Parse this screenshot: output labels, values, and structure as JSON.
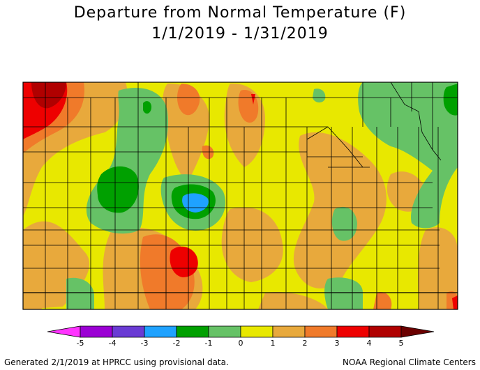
{
  "title": "Departure from Normal Temperature (F)",
  "date_range": "1/1/2019 - 1/31/2019",
  "legend": {
    "ticks": [
      "-5",
      "-4",
      "-3",
      "-2",
      "-1",
      "0",
      "1",
      "2",
      "3",
      "4",
      "5"
    ],
    "colors": [
      "#ff33ff",
      "#9b00d4",
      "#6a3bd4",
      "#1fa2ff",
      "#00a000",
      "#66c266",
      "#e8e800",
      "#e8a93c",
      "#f07a2a",
      "#ee0000",
      "#b00000",
      "#6b0000"
    ]
  },
  "footer_left": "Generated 2/1/2019 at HPRCC using provisional data.",
  "footer_right": "NOAA Regional Climate Centers"
}
